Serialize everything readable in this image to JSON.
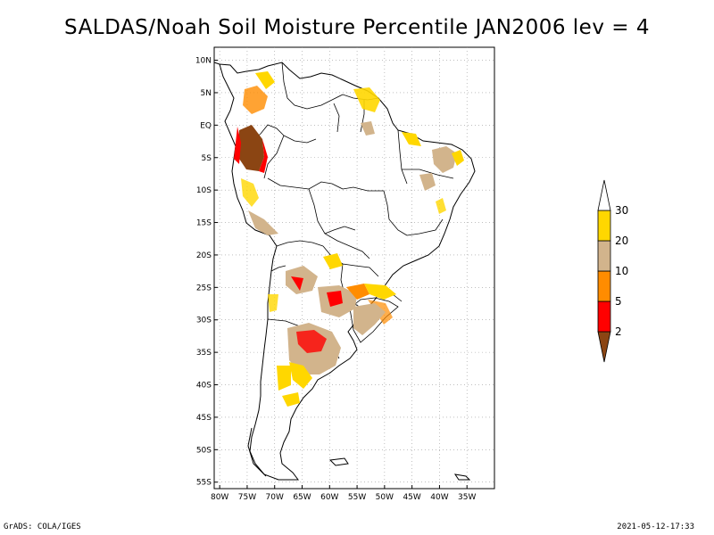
{
  "title": "SALDAS/Noah Soil Moisture Percentile JAN2006 lev = 4",
  "footer": {
    "left": "GrADS: COLA/IGES",
    "right": "2021-05-12-17:33"
  },
  "chart_data": {
    "type": "map",
    "lon_range": [
      -81,
      -30
    ],
    "lat_range": [
      -56,
      12
    ],
    "x_ticks": [
      "80W",
      "75W",
      "70W",
      "65W",
      "60W",
      "55W",
      "50W",
      "45W",
      "40W",
      "35W"
    ],
    "y_ticks": [
      "10N",
      "5N",
      "EQ",
      "5S",
      "10S",
      "15S",
      "20S",
      "25S",
      "30S",
      "35S",
      "40S",
      "45S",
      "50S",
      "55S"
    ],
    "grid": true,
    "legend": {
      "placement": "right",
      "labels": [
        "2",
        "5",
        "10",
        "20",
        "30"
      ],
      "colors": [
        "#8b4513",
        "#ff0000",
        "#ff8c00",
        "#d2b48c",
        "#ffd700",
        "#ffffff"
      ]
    }
  }
}
